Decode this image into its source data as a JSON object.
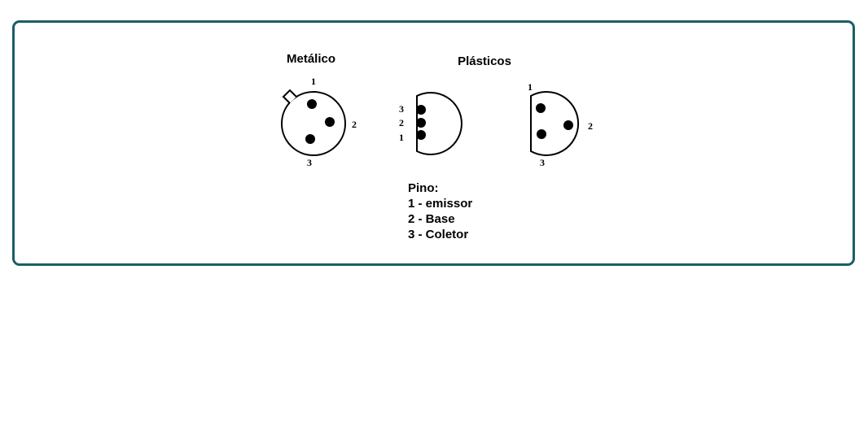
{
  "headings": {
    "metal": "Metálico",
    "plastic": "Plásticos"
  },
  "pin_numbers": {
    "metal": {
      "top": "1",
      "right": "2",
      "bottom": "3"
    },
    "plastic_a": {
      "top": "3",
      "middle": "2",
      "bottom": "1"
    },
    "plastic_b": {
      "top": "1",
      "right": "2",
      "bottom": "3"
    }
  },
  "legend": {
    "title": "Pino:",
    "items": [
      "1 - emissor",
      "2 - Base",
      "3 - Coletor"
    ]
  },
  "colors": {
    "frame_border": "#1b5e66",
    "ink": "#000000"
  }
}
